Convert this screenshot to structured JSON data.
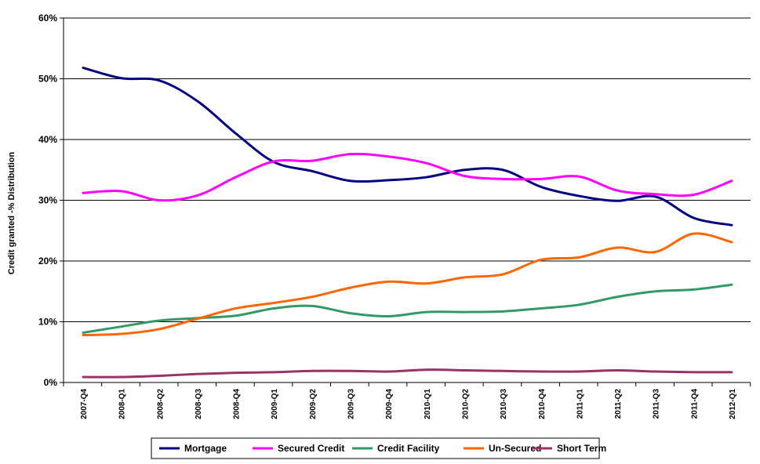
{
  "chart_data": {
    "type": "line",
    "title": "",
    "xlabel": "",
    "ylabel": "Credit granted -% Distribution",
    "ylim": [
      0,
      60
    ],
    "yticks": [
      0,
      10,
      20,
      30,
      40,
      50,
      60
    ],
    "ytick_labels": [
      "0%",
      "10%",
      "20%",
      "30%",
      "40%",
      "50%",
      "60%"
    ],
    "grid": "horizontal",
    "legend_position": "bottom",
    "categories": [
      "2007-Q4",
      "2008-Q1",
      "2008-Q2",
      "2008-Q3",
      "2008-Q4",
      "2009-Q1",
      "2009-Q2",
      "2009-Q3",
      "2009-Q4",
      "2010-Q1",
      "2010-Q2",
      "2010-Q3",
      "2010-Q4",
      "2011-Q1",
      "2011-Q2",
      "2011-Q3",
      "2011-Q4",
      "2012-Q1"
    ],
    "series": [
      {
        "name": "Mortgage",
        "color": "#000080",
        "values": [
          51.8,
          50.1,
          49.7,
          46.3,
          41.0,
          36.3,
          34.8,
          33.2,
          33.3,
          33.8,
          35.0,
          35.0,
          32.2,
          30.7,
          29.9,
          30.6,
          27.1,
          25.9
        ]
      },
      {
        "name": "Secured Credit",
        "color": "#ff00ff",
        "values": [
          31.2,
          31.5,
          30.0,
          30.8,
          33.8,
          36.4,
          36.5,
          37.6,
          37.2,
          36.1,
          34.0,
          33.5,
          33.5,
          33.9,
          31.6,
          31.0,
          30.9,
          33.2
        ]
      },
      {
        "name": "Credit Facility",
        "color": "#339966",
        "values": [
          8.2,
          9.2,
          10.2,
          10.6,
          11.0,
          12.2,
          12.6,
          11.4,
          10.9,
          11.6,
          11.6,
          11.7,
          12.2,
          12.8,
          14.1,
          15.0,
          15.3,
          16.1
        ]
      },
      {
        "name": "Un-Secured",
        "color": "#ff6600",
        "values": [
          7.8,
          8.0,
          8.8,
          10.5,
          12.2,
          13.1,
          14.1,
          15.6,
          16.6,
          16.3,
          17.3,
          17.8,
          20.2,
          20.6,
          22.2,
          21.5,
          24.5,
          23.1
        ]
      },
      {
        "name": "Short Term",
        "color": "#993366",
        "values": [
          0.9,
          0.9,
          1.1,
          1.4,
          1.6,
          1.7,
          1.9,
          1.9,
          1.8,
          2.1,
          2.0,
          1.9,
          1.8,
          1.8,
          2.0,
          1.8,
          1.7,
          1.7
        ]
      }
    ]
  }
}
